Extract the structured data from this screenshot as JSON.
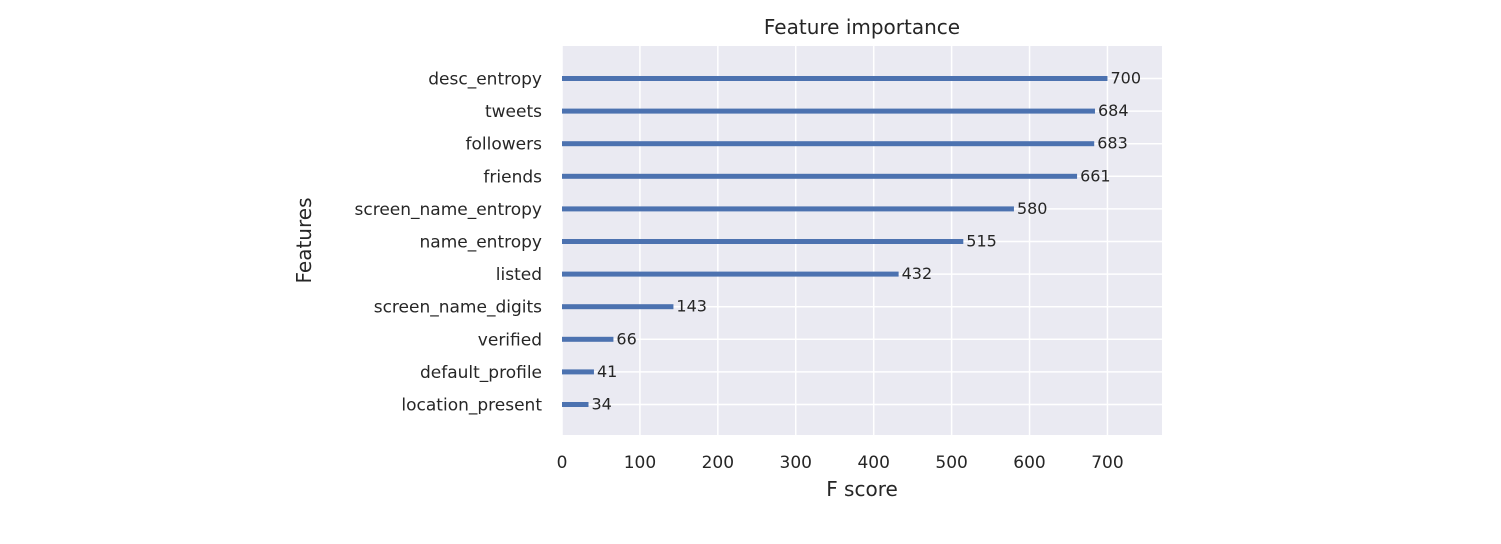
{
  "chart_data": {
    "type": "bar",
    "orientation": "horizontal",
    "title": "Feature importance",
    "xlabel": "F score",
    "ylabel": "Features",
    "categories": [
      "location_present",
      "default_profile",
      "verified",
      "screen_name_digits",
      "listed",
      "name_entropy",
      "screen_name_entropy",
      "friends",
      "followers",
      "tweets",
      "desc_entropy"
    ],
    "values": [
      34,
      41,
      66,
      143,
      432,
      515,
      580,
      661,
      683,
      684,
      700
    ],
    "xlim": [
      0,
      770
    ],
    "xticks": [
      0,
      100,
      200,
      300,
      400,
      500,
      600,
      700
    ],
    "grid": true,
    "style": {
      "bar_color": "#4c72b0",
      "plot_background": "#eaeaf2",
      "grid_color": "#ffffff",
      "text_color": "#262626"
    }
  }
}
